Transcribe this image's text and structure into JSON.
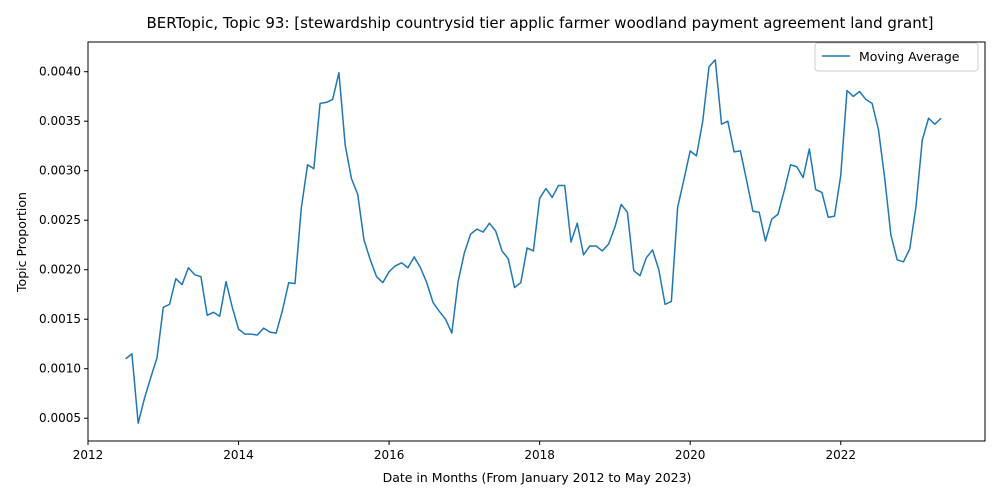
{
  "chart_data": {
    "type": "line",
    "title": "BERTopic, Topic 93: [stewardship countrysid tier applic farmer woodland payment agreement land grant]",
    "xlabel": "Date in Months (From January 2012 to May 2023)",
    "ylabel": "Topic Proportion",
    "xlim": [
      "2012-01",
      "2023-12"
    ],
    "ylim": [
      0.00027,
      0.0043
    ],
    "x_ticks": [
      "2012",
      "2014",
      "2016",
      "2018",
      "2020",
      "2022"
    ],
    "y_ticks": [
      "0.0005",
      "0.0010",
      "0.0015",
      "0.0020",
      "0.0025",
      "0.0030",
      "0.0035",
      "0.0040"
    ],
    "grid": false,
    "legend_position": "top-right",
    "colors": {
      "line": "#1f77b4"
    },
    "series": [
      {
        "name": "Moving Average",
        "x": [
          "2012-07",
          "2012-08",
          "2012-09",
          "2012-10",
          "2012-11",
          "2012-12",
          "2013-01",
          "2013-02",
          "2013-03",
          "2013-04",
          "2013-05",
          "2013-06",
          "2013-07",
          "2013-08",
          "2013-09",
          "2013-10",
          "2013-11",
          "2013-12",
          "2014-01",
          "2014-02",
          "2014-03",
          "2014-04",
          "2014-05",
          "2014-06",
          "2014-07",
          "2014-08",
          "2014-09",
          "2014-10",
          "2014-11",
          "2014-12",
          "2015-01",
          "2015-02",
          "2015-03",
          "2015-04",
          "2015-05",
          "2015-06",
          "2015-07",
          "2015-08",
          "2015-09",
          "2015-10",
          "2015-11",
          "2015-12",
          "2016-01",
          "2016-02",
          "2016-03",
          "2016-04",
          "2016-05",
          "2016-06",
          "2016-07",
          "2016-08",
          "2016-09",
          "2016-10",
          "2016-11",
          "2016-12",
          "2017-01",
          "2017-02",
          "2017-03",
          "2017-04",
          "2017-05",
          "2017-06",
          "2017-07",
          "2017-08",
          "2017-09",
          "2017-10",
          "2017-11",
          "2017-12",
          "2018-01",
          "2018-02",
          "2018-03",
          "2018-04",
          "2018-05",
          "2018-06",
          "2018-07",
          "2018-08",
          "2018-09",
          "2018-10",
          "2018-11",
          "2018-12",
          "2019-01",
          "2019-02",
          "2019-03",
          "2019-04",
          "2019-05",
          "2019-06",
          "2019-07",
          "2019-08",
          "2019-09",
          "2019-10",
          "2019-11",
          "2019-12",
          "2020-01",
          "2020-02",
          "2020-03",
          "2020-04",
          "2020-05",
          "2020-06",
          "2020-07",
          "2020-08",
          "2020-09",
          "2020-10",
          "2020-11",
          "2020-12",
          "2021-01",
          "2021-02",
          "2021-03",
          "2021-04",
          "2021-05",
          "2021-06",
          "2021-07",
          "2021-08",
          "2021-09",
          "2021-10",
          "2021-11",
          "2021-12",
          "2022-01",
          "2022-02",
          "2022-03",
          "2022-04",
          "2022-05",
          "2022-06",
          "2022-07",
          "2022-08",
          "2022-09",
          "2022-10",
          "2022-11",
          "2022-12",
          "2023-01",
          "2023-02",
          "2023-03",
          "2023-04",
          "2023-05"
        ],
        "y": [
          0.0011,
          0.00115,
          0.00045,
          0.0007,
          0.00091,
          0.00111,
          0.00162,
          0.00165,
          0.00191,
          0.00185,
          0.00202,
          0.00195,
          0.00193,
          0.00154,
          0.00157,
          0.00153,
          0.00188,
          0.00162,
          0.0014,
          0.00135,
          0.00135,
          0.00134,
          0.00141,
          0.00137,
          0.00136,
          0.00159,
          0.00187,
          0.00186,
          0.00262,
          0.00306,
          0.00302,
          0.00368,
          0.00369,
          0.00372,
          0.00399,
          0.00326,
          0.00292,
          0.00276,
          0.0023,
          0.0021,
          0.00193,
          0.00187,
          0.00198,
          0.00204,
          0.00207,
          0.00202,
          0.00213,
          0.00202,
          0.00187,
          0.00167,
          0.00158,
          0.0015,
          0.00136,
          0.00188,
          0.00217,
          0.00236,
          0.00241,
          0.00238,
          0.00247,
          0.00239,
          0.00219,
          0.00211,
          0.00182,
          0.00187,
          0.00222,
          0.00219,
          0.00272,
          0.00282,
          0.00273,
          0.00285,
          0.00285,
          0.00228,
          0.00247,
          0.00215,
          0.00224,
          0.00224,
          0.00219,
          0.00226,
          0.00243,
          0.00266,
          0.00258,
          0.00199,
          0.00194,
          0.00212,
          0.0022,
          0.002,
          0.00165,
          0.00168,
          0.00263,
          0.00291,
          0.0032,
          0.00315,
          0.0035,
          0.00405,
          0.00412,
          0.00347,
          0.0035,
          0.00319,
          0.0032,
          0.0029,
          0.00259,
          0.00258,
          0.00229,
          0.00251,
          0.00256,
          0.0028,
          0.00306,
          0.00304,
          0.00293,
          0.00322,
          0.00281,
          0.00278,
          0.00253,
          0.00254,
          0.00295,
          0.00381,
          0.00375,
          0.0038,
          0.00372,
          0.00368,
          0.00342,
          0.00293,
          0.00235,
          0.0021,
          0.00208,
          0.00221,
          0.00264,
          0.00331,
          0.00353,
          0.00347,
          0.00353
        ]
      }
    ]
  }
}
